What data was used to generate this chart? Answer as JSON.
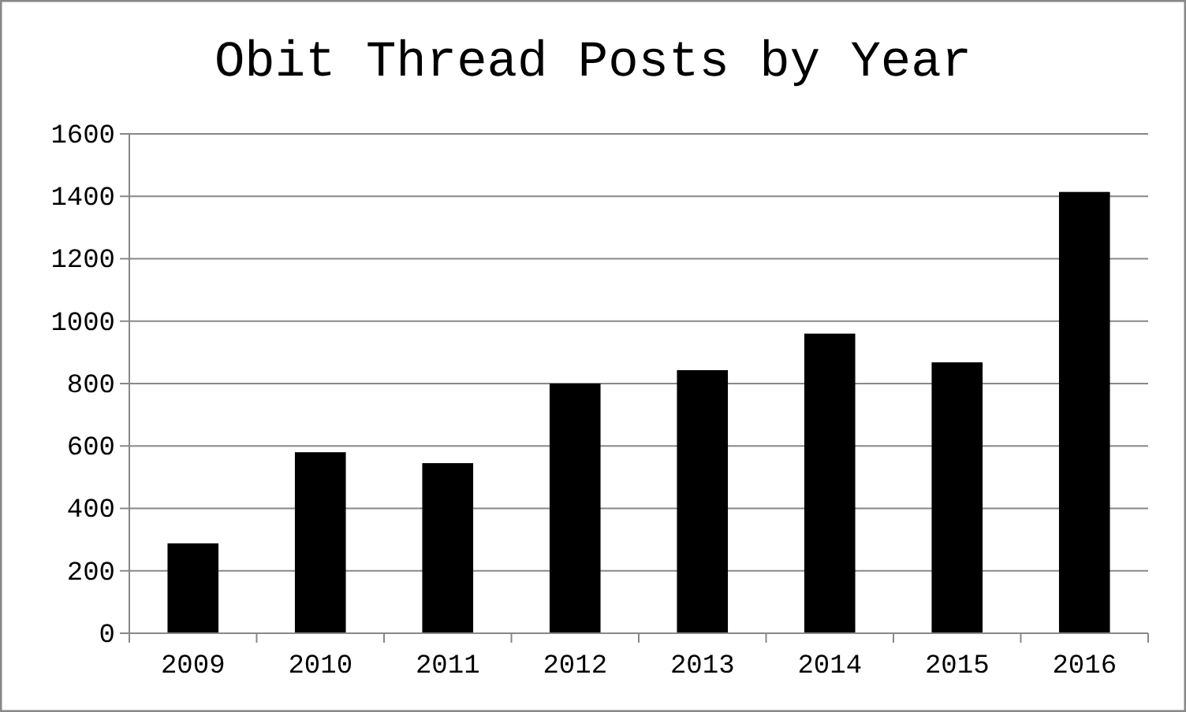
{
  "chart_data": {
    "type": "bar",
    "title": "Obit Thread Posts by Year",
    "categories": [
      "2009",
      "2010",
      "2011",
      "2012",
      "2013",
      "2014",
      "2015",
      "2016"
    ],
    "values": [
      288,
      580,
      545,
      800,
      843,
      960,
      868,
      1414
    ],
    "color": "#000000",
    "ylim": [
      0,
      1600
    ],
    "yticks": [
      0,
      200,
      400,
      600,
      800,
      1000,
      1200,
      1400,
      1600
    ],
    "grid": "y"
  }
}
